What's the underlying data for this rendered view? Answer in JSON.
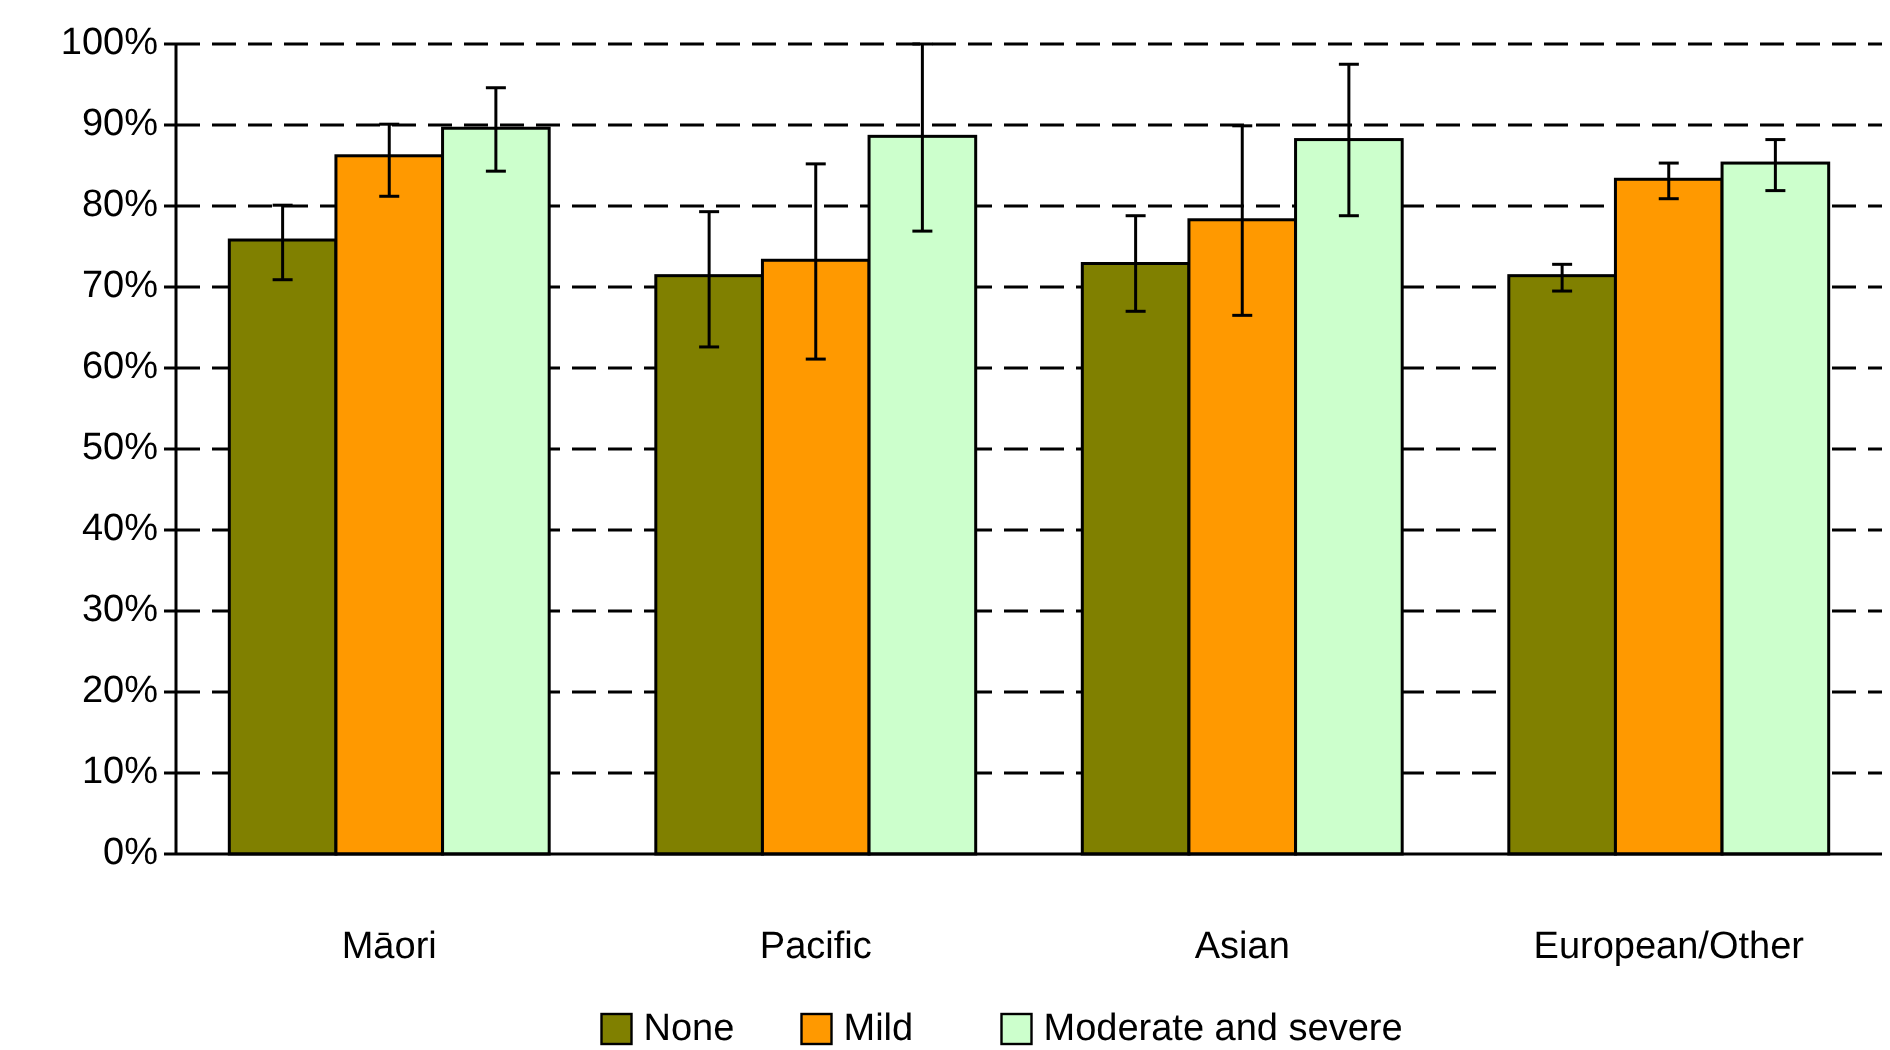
{
  "chart_data": {
    "type": "bar",
    "categories": [
      "Māori",
      "Pacific",
      "Asian",
      "European/Other"
    ],
    "series": [
      {
        "name": "None",
        "color": "#808000",
        "values": [
          75.8,
          71.4,
          72.9,
          71.4
        ],
        "errors": [
          [
            70.9,
            80.1
          ],
          [
            62.6,
            79.3
          ],
          [
            67.0,
            78.8
          ],
          [
            69.5,
            72.8
          ]
        ]
      },
      {
        "name": "Mild",
        "color": "#ff9900",
        "values": [
          86.2,
          73.3,
          78.3,
          83.3
        ],
        "errors": [
          [
            81.2,
            90.1
          ],
          [
            61.1,
            85.2
          ],
          [
            66.5,
            89.9
          ],
          [
            80.9,
            85.3
          ]
        ]
      },
      {
        "name": "Moderate and severe",
        "color": "#ccffcc",
        "values": [
          89.6,
          88.6,
          88.2,
          85.3
        ],
        "errors": [
          [
            84.3,
            94.6
          ],
          [
            76.9,
            100
          ],
          [
            78.8,
            97.5
          ],
          [
            81.9,
            88.2
          ]
        ]
      }
    ],
    "ylim": [
      0,
      100
    ],
    "yticks": [
      {
        "value": 0,
        "label": "0%"
      },
      {
        "value": 10,
        "label": "10%"
      },
      {
        "value": 20,
        "label": "20%"
      },
      {
        "value": 30,
        "label": "30%"
      },
      {
        "value": 40,
        "label": "40%"
      },
      {
        "value": 50,
        "label": "50%"
      },
      {
        "value": 60,
        "label": "60%"
      },
      {
        "value": 70,
        "label": "70%"
      },
      {
        "value": 80,
        "label": "80%"
      },
      {
        "value": 90,
        "label": "90%"
      },
      {
        "value": 100,
        "label": "100%"
      }
    ],
    "grid": "y",
    "legend": "bottom"
  }
}
